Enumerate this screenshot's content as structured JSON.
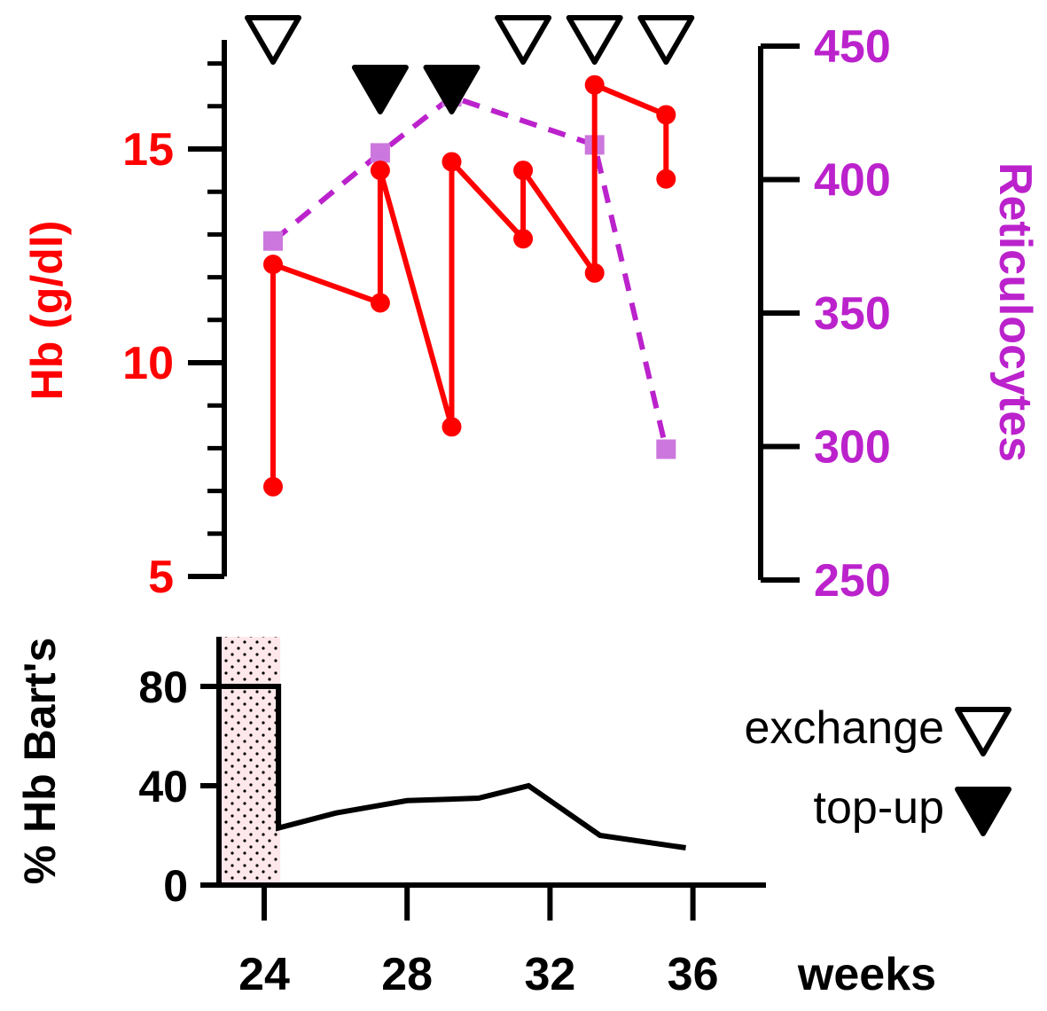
{
  "colors": {
    "hb": "#ff0000",
    "reticulocytes": "#bb22cc",
    "reticulocyte_markers": "#cc77dd",
    "axis": "#000000",
    "barts": "#000000"
  },
  "chart_data": [
    {
      "type": "line",
      "xlim": [
        22.5,
        35.8
      ],
      "series": [
        {
          "name": "Hb (g/dl)",
          "axis": "left",
          "ylabel": "Hb (g/dl)",
          "ylim": [
            5,
            17.6
          ],
          "yticks": [
            "5",
            "10",
            "15"
          ],
          "points": [
            [
              24.4,
              7.1
            ],
            [
              24.4,
              12.3
            ],
            [
              27.4,
              11.4
            ],
            [
              27.4,
              14.5
            ],
            [
              29.4,
              8.5
            ],
            [
              29.4,
              14.7
            ],
            [
              31.4,
              12.9
            ],
            [
              31.4,
              14.5
            ],
            [
              33.4,
              12.1
            ],
            [
              33.4,
              16.5
            ],
            [
              35.4,
              15.8
            ],
            [
              35.4,
              14.3
            ]
          ]
        },
        {
          "name": "Reticulocytes",
          "axis": "right",
          "ylabel": "Reticulocytes",
          "ylim": [
            250,
            450
          ],
          "yticks": [
            "250",
            "300",
            "350",
            "400",
            "450"
          ],
          "points": [
            [
              24.4,
              377
            ],
            [
              27.4,
              410
            ],
            [
              29.4,
              431
            ],
            [
              33.4,
              413
            ],
            [
              35.4,
              299
            ]
          ]
        }
      ],
      "events": [
        {
          "x": 24.4,
          "type": "exchange"
        },
        {
          "x": 27.4,
          "type": "top-up"
        },
        {
          "x": 29.4,
          "type": "top-up"
        },
        {
          "x": 31.4,
          "type": "exchange"
        },
        {
          "x": 33.4,
          "type": "exchange"
        },
        {
          "x": 35.4,
          "type": "exchange"
        }
      ]
    },
    {
      "type": "line",
      "xlabel": "weeks",
      "xlim": [
        22.5,
        36.5
      ],
      "xticks": [
        "24",
        "28",
        "32",
        "36"
      ],
      "ylabel": "% Hb Bart's",
      "ylim": [
        0,
        100
      ],
      "yticks": [
        "0",
        "40",
        "80"
      ],
      "series": [
        {
          "points": [
            [
              23.0,
              80
            ],
            [
              24.4,
              80
            ],
            [
              24.4,
              23
            ],
            [
              26.0,
              29
            ],
            [
              28.0,
              34
            ],
            [
              30.0,
              35
            ],
            [
              31.4,
              40
            ],
            [
              33.4,
              20
            ],
            [
              35.8,
              15
            ]
          ]
        }
      ],
      "shaded_x": [
        23.0,
        24.4
      ]
    }
  ],
  "legend": [
    {
      "label": "exchange",
      "marker": "open-down-triangle"
    },
    {
      "label": "top-up",
      "marker": "filled-down-triangle"
    }
  ]
}
